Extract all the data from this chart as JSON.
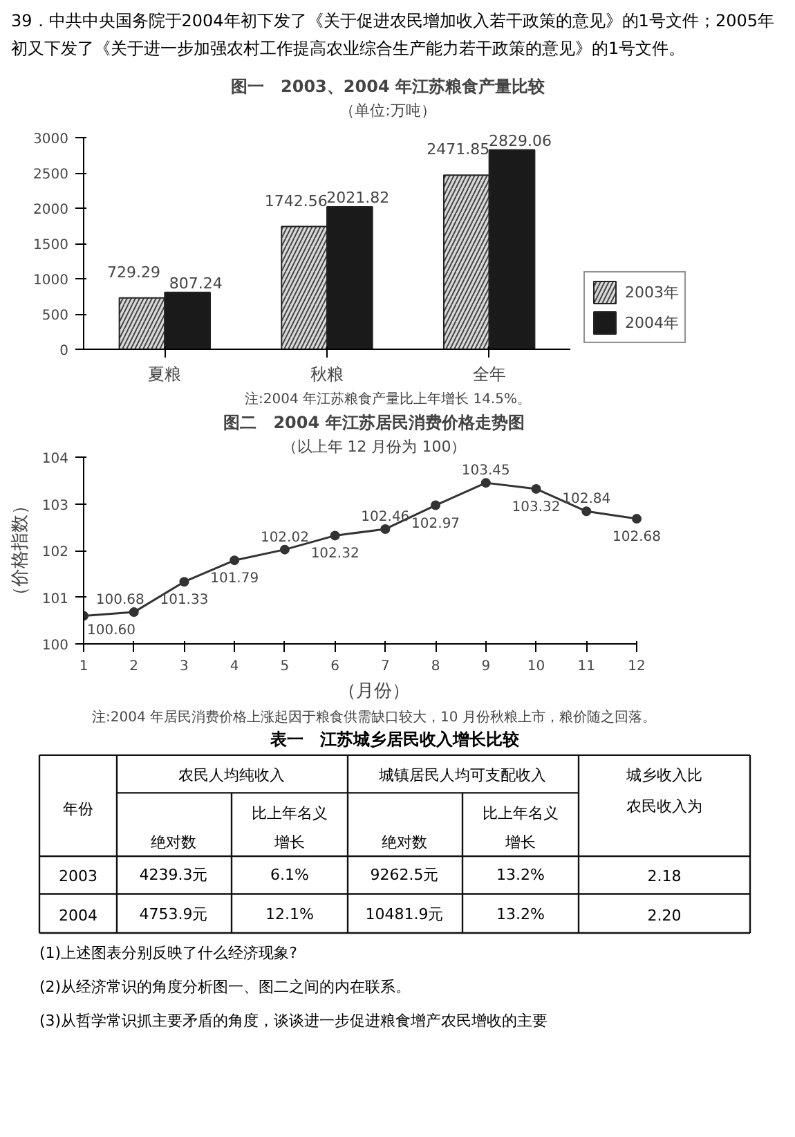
{
  "chart_data": [
    {
      "type": "other",
      "annotations": [
        "39．中共中央国务院于2004年初下发了《关于促进农民增加收入若干政策的意见》的1号文件；2005年初又下发了《关于进一步加强农村工作提高农业综合生产能力若干政策的意见》的1号文件。"
      ]
    },
    {
      "type": "bar",
      "title": "图一　2003、2004 年江苏粮食产量比较",
      "subtitle": "（单位:万吨）",
      "categories": [
        "夏粮",
        "秋粮",
        "全年"
      ],
      "series": [
        {
          "name": "2003年",
          "color": "#d9d9d9",
          "values": [
            729.29,
            1742.56,
            2471.85
          ]
        },
        {
          "name": "2004年",
          "color": "#1a1a1a",
          "values": [
            807.24,
            2021.82,
            2829.06
          ]
        }
      ],
      "ylim": [
        0,
        3000
      ],
      "yticks": [
        0,
        500,
        1000,
        1500,
        2000,
        2500,
        3000
      ],
      "data_labels": true,
      "legend": "right",
      "grid": false,
      "annotations": [
        "注:2004 年江苏粮食产量比上年增长 14.5%。"
      ]
    },
    {
      "type": "line",
      "title": "图二　2004 年江苏居民消费价格走势图",
      "subtitle": "（以上年 12 月份为 100）",
      "ylabel": "（价格指数）",
      "xlabel": "（月份）",
      "x": [
        1,
        2,
        3,
        4,
        5,
        6,
        7,
        8,
        9,
        10,
        11,
        12
      ],
      "series": [
        {
          "color": "#333333",
          "values": [
            100.6,
            100.68,
            101.33,
            101.79,
            102.02,
            102.32,
            102.46,
            102.97,
            103.45,
            103.32,
            102.84,
            102.68
          ],
          "value_labels": [
            "100.60",
            "100.68",
            "101.33",
            "101.79",
            "102.02",
            "102.32",
            "102.46",
            "102.97",
            "103.45",
            "103.32",
            "102.84",
            "102.68"
          ]
        }
      ],
      "xlim": [
        1,
        12
      ],
      "xticks": [
        1,
        2,
        3,
        4,
        5,
        6,
        7,
        8,
        9,
        10,
        11,
        12
      ],
      "ylim": [
        100,
        104
      ],
      "yticks": [
        100,
        101,
        102,
        103,
        104
      ],
      "marker": "circle",
      "line_style": "solid",
      "data_labels": true,
      "grid": false,
      "annotations": [
        "注:2004 年居民消费价格上涨起因于粮食供需缺口较大，10 月份秋粮上市，粮价随之回落。"
      ]
    },
    {
      "type": "other",
      "title": "表一　江苏城乡居民收入增长比较",
      "annotations": [
        "年份",
        "农民人均纯收入",
        "城镇居民人均可支配收入",
        "城乡收入比",
        "农民收入为",
        "绝对数",
        "比上年名义",
        "增长",
        "绝对数",
        "比上年名义",
        "增长",
        "2003",
        "4239.3元",
        "6.1%",
        "9262.5元",
        "13.2%",
        "2.18",
        "2004",
        "4753.9元",
        "12.1%",
        "10481.9元",
        "13.2%",
        "2.20",
        "(1)上述图表分别反映了什么经济现象?",
        "(2)从经济常识的角度分析图一、图二之间的内在联系。",
        "(3)从哲学常识抓主要矛盾的角度，谈谈进一步促进粮食增产农民增收的主要"
      ]
    }
  ]
}
